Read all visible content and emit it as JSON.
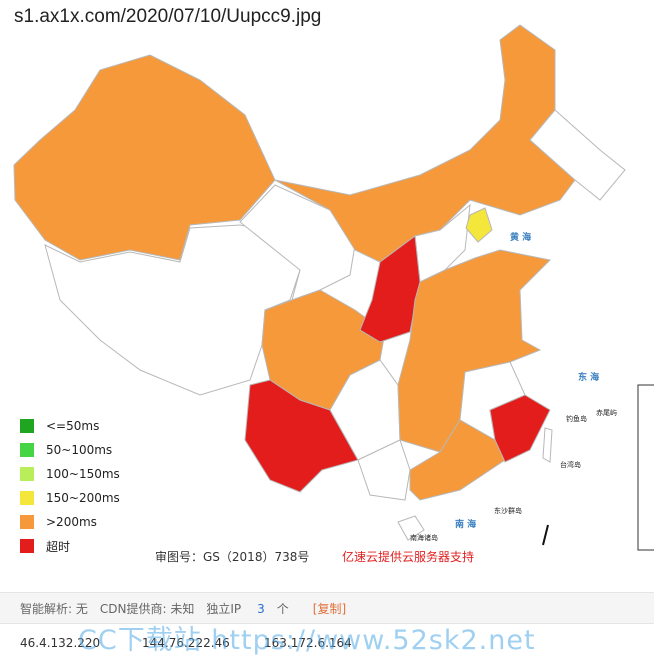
{
  "header": {
    "title": "s1.ax1x.com/2020/07/10/Uupcc9.jpg"
  },
  "map": {
    "seas": [
      "黄 海",
      "东 海",
      "南 海"
    ],
    "islands": [
      "台湾岛",
      "东沙群岛",
      "南海诸岛",
      "钓鱼岛",
      "赤尾屿"
    ]
  },
  "legend": [
    {
      "label": "<=50ms",
      "color": "#1fa51f"
    },
    {
      "label": "50~100ms",
      "color": "#44d444"
    },
    {
      "label": "100~150ms",
      "color": "#b8ee5a"
    },
    {
      "label": "150~200ms",
      "color": "#f5e63c"
    },
    {
      "label": ">200ms",
      "color": "#f5993a"
    },
    {
      "label": "超时",
      "color": "#e31c1c"
    }
  ],
  "approval": "审图号：GS（2018）738号",
  "provider": "亿速云提供云服务器支持",
  "info_bar": {
    "dns": "智能解析: 无",
    "cdn": "CDN提供商: 未知",
    "ip_label": "独立IP",
    "ip_count": "3",
    "ip_unit": "个",
    "copy": "[复制]"
  },
  "ips": [
    "46.4.132.220",
    "144.76.222.46",
    "163.172.6.164"
  ],
  "watermark": "CC下载站 https://www.52sk2.net"
}
